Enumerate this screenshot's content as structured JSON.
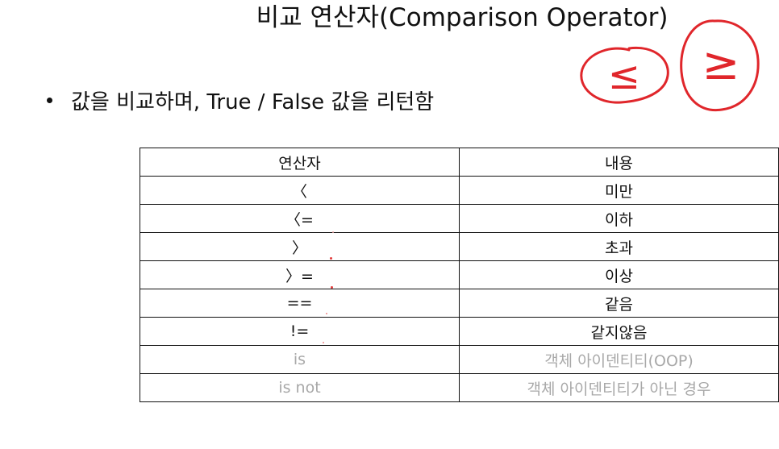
{
  "title": "비교 연산자(Comparison Operator)",
  "bullet": {
    "text": "값을 비교하며, True / False 값을 리턴함"
  },
  "annotation": {
    "left_symbol": "≤",
    "right_symbol": "≥",
    "ink_color": "#e0262b"
  },
  "table": {
    "headers": [
      "연산자",
      "내용"
    ],
    "rows": [
      {
        "op": "〈",
        "desc": "미만"
      },
      {
        "op": "〈=",
        "desc": "이하"
      },
      {
        "op": "〉",
        "desc": "초과"
      },
      {
        "op": "〉=",
        "desc": "이상"
      },
      {
        "op": "==",
        "desc": "같음"
      },
      {
        "op": "!=",
        "desc": "같지않음"
      },
      {
        "op": "is",
        "desc": "객체 아이덴티티(OOP)"
      },
      {
        "op": "is not",
        "desc": "객체 아이덴티티가 아닌 경우"
      }
    ]
  }
}
